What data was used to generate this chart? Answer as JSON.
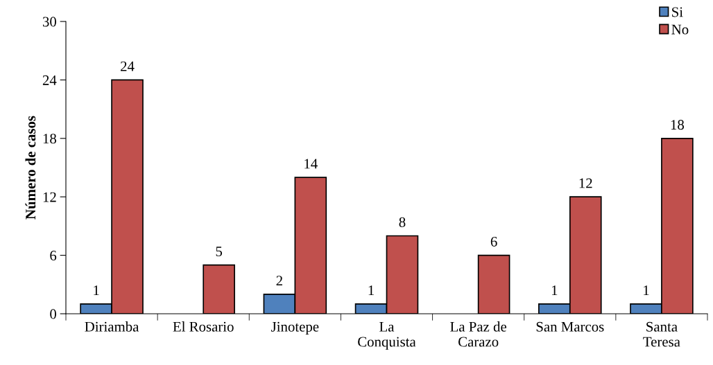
{
  "chart_data": {
    "type": "bar",
    "ylabel": "Número de casos",
    "categories": [
      "Diriamba",
      "El Rosario",
      "Jinotepe",
      "La\nConquista",
      "La Paz de\nCarazo",
      "San Marcos",
      "Santa\nTeresa"
    ],
    "series": [
      {
        "name": "Si",
        "color": "#4f81bd",
        "values": [
          1,
          null,
          2,
          1,
          null,
          1,
          1
        ],
        "value_labels": [
          "1",
          null,
          "2",
          "1",
          null,
          "1",
          "1"
        ]
      },
      {
        "name": "No",
        "color": "#c0504d",
        "values": [
          24,
          5,
          14,
          8,
          6,
          12,
          18
        ],
        "value_labels": [
          "24",
          "5",
          "14",
          "8",
          "6",
          "12",
          "18"
        ]
      }
    ],
    "ylim": [
      0,
      30
    ],
    "yticks": [
      0,
      6,
      12,
      18,
      24,
      30
    ],
    "grid": false,
    "legend": "top right"
  }
}
